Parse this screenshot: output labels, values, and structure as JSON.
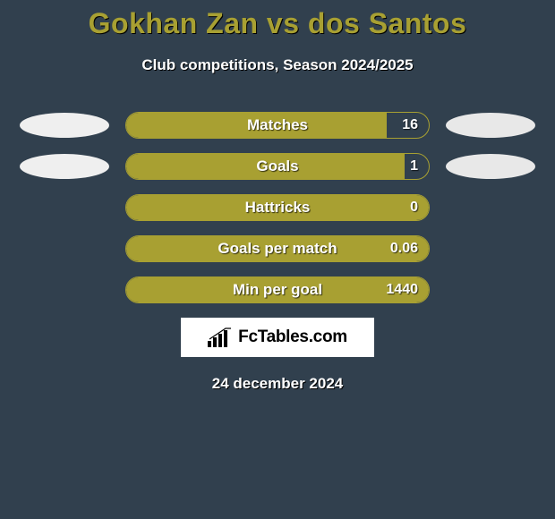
{
  "title": "Gokhan Zan vs dos Santos",
  "subtitle": "Club competitions, Season 2024/2025",
  "colors": {
    "background": "#31404e",
    "accent": "#a8a032",
    "ellipse_left": "#efefef",
    "ellipse_right": "#e8e8e8",
    "text": "#ffffff",
    "branding_bg": "#ffffff",
    "branding_text": "#000000"
  },
  "branding": "FcTables.com",
  "date_text": "24 december 2024",
  "stats": [
    {
      "label": "Matches",
      "value": "16",
      "fill_pct": 86,
      "show_ellipses": true
    },
    {
      "label": "Goals",
      "value": "1",
      "fill_pct": 92,
      "show_ellipses": true
    },
    {
      "label": "Hattricks",
      "value": "0",
      "fill_pct": 100,
      "show_ellipses": false
    },
    {
      "label": "Goals per match",
      "value": "0.06",
      "fill_pct": 100,
      "show_ellipses": false
    },
    {
      "label": "Min per goal",
      "value": "1440",
      "fill_pct": 100,
      "show_ellipses": false
    }
  ]
}
